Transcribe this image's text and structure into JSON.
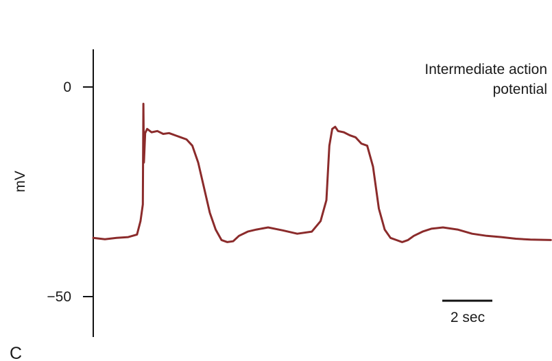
{
  "chart_data": {
    "type": "line",
    "panel_label": "C",
    "ylabel": "mV",
    "yticks": [
      {
        "value": 0,
        "label": "0"
      },
      {
        "value": -50,
        "label": "−50"
      }
    ],
    "ylim": [
      -60,
      9
    ],
    "annotation": [
      "Intermediate action",
      "potential"
    ],
    "scale_bar": {
      "label": "2 sec",
      "duration_sec": 2
    },
    "series": [
      {
        "color": "#8b2b2b",
        "x": [
          0.0,
          0.4,
          0.8,
          1.2,
          1.5,
          1.62,
          1.7,
          1.72,
          1.74,
          1.78,
          1.85,
          2.0,
          2.2,
          2.4,
          2.6,
          2.8,
          3.0,
          3.2,
          3.4,
          3.6,
          3.8,
          4.0,
          4.2,
          4.4,
          4.6,
          4.8,
          5.0,
          5.3,
          5.6,
          6.0,
          6.5,
          7.0,
          7.5,
          7.8,
          8.0,
          8.1,
          8.2,
          8.3,
          8.4,
          8.6,
          8.8,
          9.0,
          9.2,
          9.4,
          9.6,
          9.8,
          10.0,
          10.2,
          10.4,
          10.6,
          10.8,
          11.0,
          11.3,
          11.6,
          12.0,
          12.5,
          13.0,
          13.5,
          14.0,
          14.5,
          15.0,
          15.7
        ],
        "y": [
          -36,
          -36.3,
          -36,
          -35.8,
          -35.2,
          -32,
          -28,
          -4,
          -18,
          -11,
          -10,
          -10.8,
          -10.5,
          -11.2,
          -11,
          -11.5,
          -12,
          -12.5,
          -14,
          -18,
          -24,
          -30,
          -34,
          -36.5,
          -37,
          -36.8,
          -35.5,
          -34.5,
          -34,
          -33.5,
          -34.2,
          -35,
          -34.5,
          -32,
          -27,
          -14,
          -10,
          -9.5,
          -10.5,
          -10.8,
          -11.5,
          -12,
          -13.5,
          -14,
          -19,
          -29,
          -34,
          -36,
          -36.5,
          -37,
          -36.5,
          -35.5,
          -34.5,
          -33.8,
          -33.5,
          -34,
          -35,
          -35.5,
          -35.8,
          -36.2,
          -36.4,
          -36.5
        ]
      }
    ]
  }
}
